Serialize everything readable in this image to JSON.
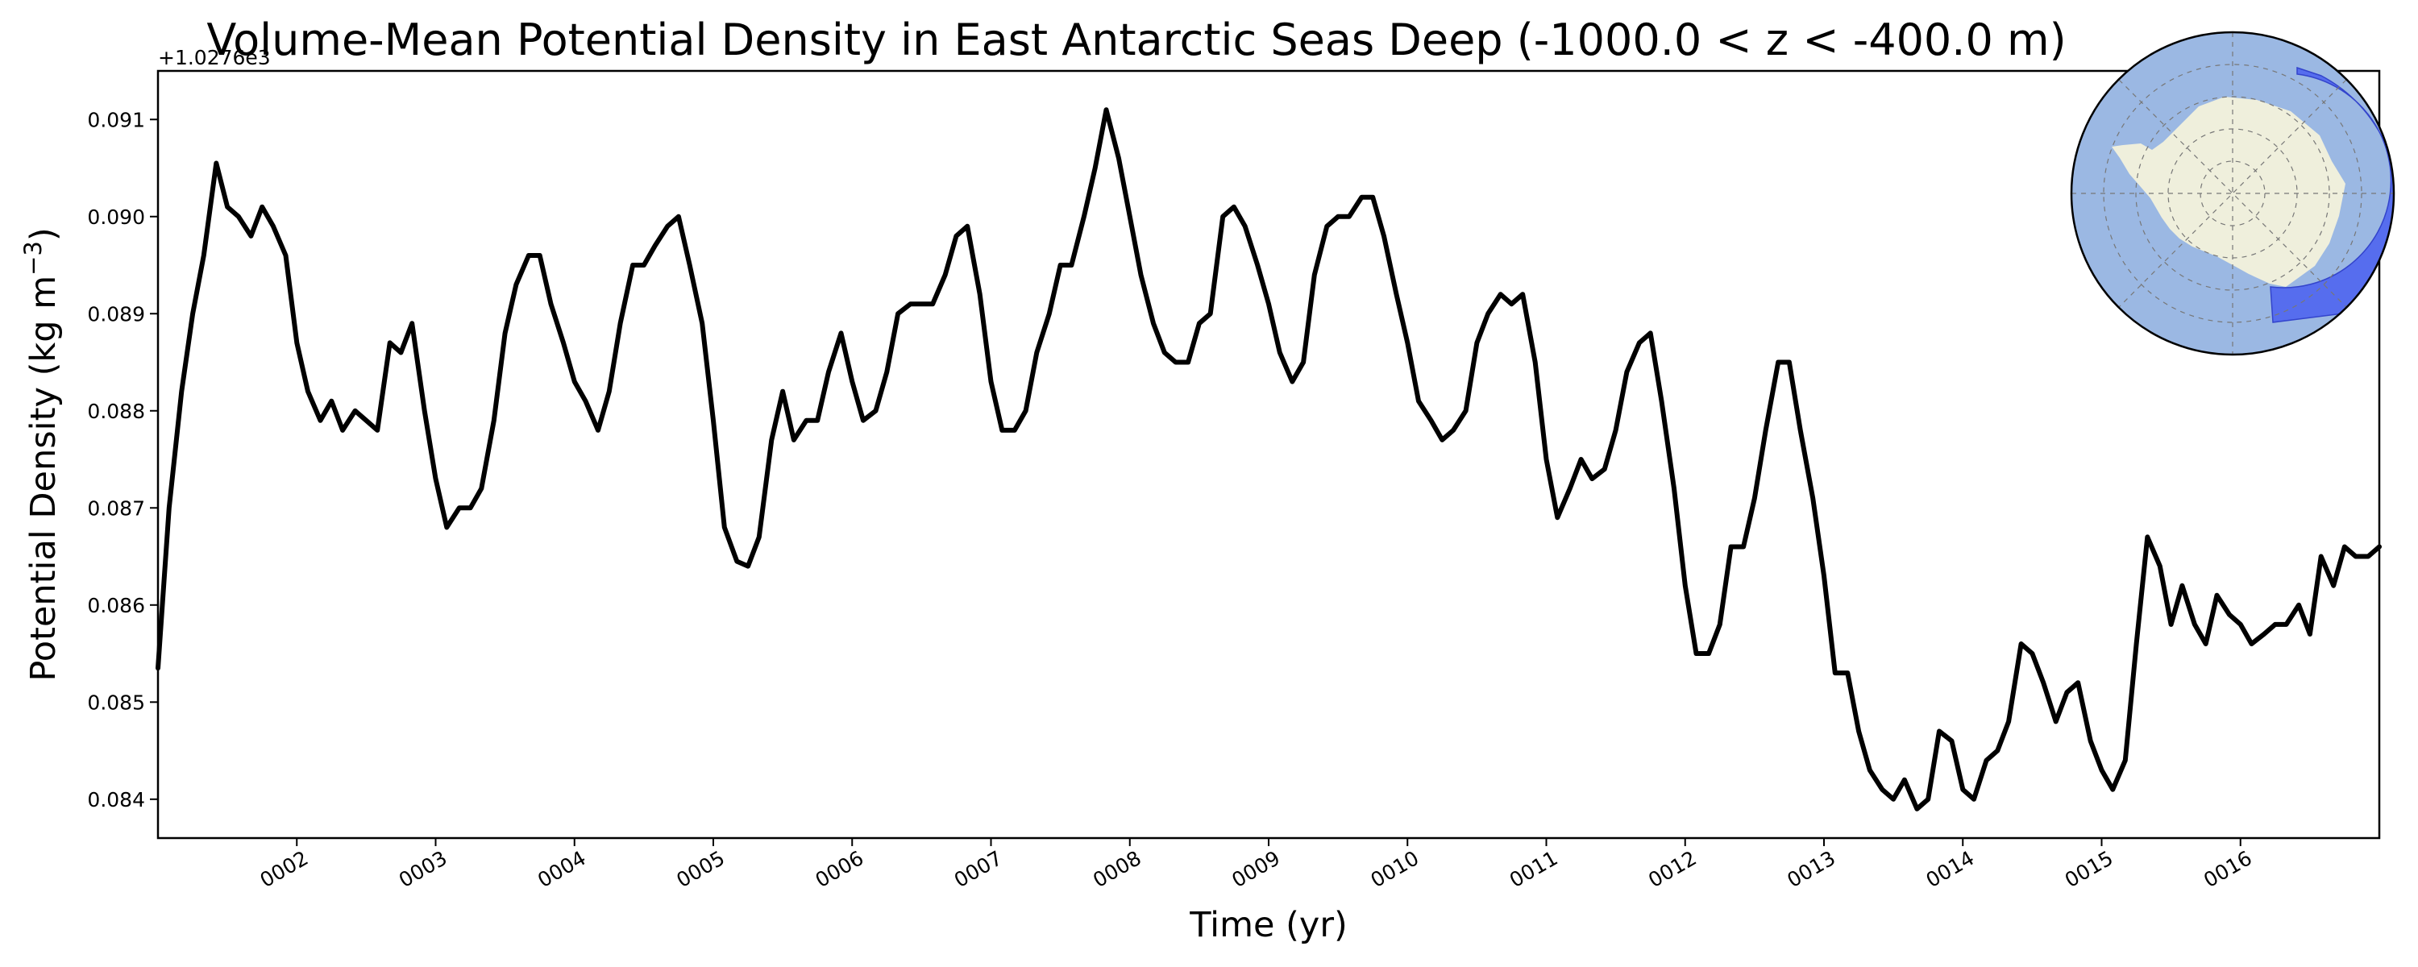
{
  "chart_data": {
    "type": "line",
    "title": "Volume-Mean Potential Density in East Antarctic Seas Deep (-1000.0 < z < -400.0 m)",
    "xlabel": "Time (yr)",
    "ylabel_main": "Potential Density (kg m",
    "ylabel_exp": "−3",
    "ylabel_close": ")",
    "y_offset_label": "+1.0276e3",
    "xlim": [
      1.0,
      17.0
    ],
    "ylim": [
      0.0836,
      0.0915
    ],
    "x_ticks": [
      {
        "value": 2,
        "label": "0002"
      },
      {
        "value": 3,
        "label": "0003"
      },
      {
        "value": 4,
        "label": "0004"
      },
      {
        "value": 5,
        "label": "0005"
      },
      {
        "value": 6,
        "label": "0006"
      },
      {
        "value": 7,
        "label": "0007"
      },
      {
        "value": 8,
        "label": "0008"
      },
      {
        "value": 9,
        "label": "0009"
      },
      {
        "value": 10,
        "label": "0010"
      },
      {
        "value": 11,
        "label": "0011"
      },
      {
        "value": 12,
        "label": "0012"
      },
      {
        "value": 13,
        "label": "0013"
      },
      {
        "value": 14,
        "label": "0014"
      },
      {
        "value": 15,
        "label": "0015"
      },
      {
        "value": 16,
        "label": "0016"
      }
    ],
    "y_ticks": [
      {
        "value": 0.084,
        "label": "0.084"
      },
      {
        "value": 0.085,
        "label": "0.085"
      },
      {
        "value": 0.086,
        "label": "0.086"
      },
      {
        "value": 0.087,
        "label": "0.087"
      },
      {
        "value": 0.088,
        "label": "0.088"
      },
      {
        "value": 0.089,
        "label": "0.089"
      },
      {
        "value": 0.09,
        "label": "0.090"
      },
      {
        "value": 0.091,
        "label": "0.091"
      }
    ],
    "grid": false,
    "line_color": "#000000",
    "inset_map": {
      "type": "south-polar-map",
      "ocean_color": "#9bb8e3",
      "land_color": "#efefdc",
      "region_color": "#4a5ff0"
    },
    "series": [
      {
        "x": [
          1.0,
          1.08,
          1.17,
          1.25,
          1.33,
          1.42,
          1.5,
          1.58,
          1.67,
          1.75,
          1.83,
          1.92,
          2.0,
          2.08,
          2.17,
          2.25,
          2.33,
          2.42,
          2.5,
          2.58,
          2.67,
          2.75,
          2.83,
          2.92,
          3.0,
          3.08,
          3.17,
          3.25,
          3.33,
          3.42,
          3.5,
          3.58,
          3.67,
          3.75,
          3.83,
          3.92,
          4.0,
          4.08,
          4.17,
          4.25,
          4.33,
          4.42,
          4.5,
          4.58,
          4.67,
          4.75,
          4.83,
          4.92,
          5.0,
          5.08,
          5.17,
          5.25,
          5.33,
          5.42,
          5.5,
          5.58,
          5.67,
          5.75,
          5.83,
          5.92,
          6.0,
          6.08,
          6.17,
          6.25,
          6.33,
          6.42,
          6.5,
          6.58,
          6.67,
          6.75,
          6.83,
          6.92,
          7.0,
          7.08,
          7.17,
          7.25,
          7.33,
          7.42,
          7.5,
          7.58,
          7.67,
          7.75,
          7.83,
          7.92,
          8.0,
          8.08,
          8.17,
          8.25,
          8.33,
          8.42,
          8.5,
          8.58,
          8.67,
          8.75,
          8.83,
          8.92,
          9.0,
          9.08,
          9.17,
          9.25,
          9.33,
          9.42,
          9.5,
          9.58,
          9.67,
          9.75,
          9.83,
          9.92,
          10.0,
          10.08,
          10.17,
          10.25,
          10.33,
          10.42,
          10.5,
          10.58,
          10.67,
          10.75,
          10.83,
          10.92,
          11.0,
          11.08,
          11.17,
          11.25,
          11.33,
          11.42,
          11.5,
          11.58,
          11.67,
          11.75,
          11.83,
          11.92,
          12.0,
          12.08,
          12.17,
          12.25,
          12.33,
          12.42,
          12.5,
          12.58,
          12.67,
          12.75,
          12.83,
          12.92,
          13.0,
          13.08,
          13.17,
          13.25,
          13.33,
          13.42,
          13.5,
          13.58,
          13.67,
          13.75,
          13.83,
          13.92,
          14.0,
          14.08,
          14.17,
          14.25,
          14.33,
          14.42,
          14.5,
          14.58,
          14.67,
          14.75,
          14.83,
          14.92,
          15.0,
          15.08,
          15.17,
          15.25,
          15.33,
          15.42,
          15.5,
          15.58,
          15.67,
          15.75,
          15.83,
          15.92,
          16.0,
          16.08,
          16.17,
          16.25,
          16.33,
          16.42,
          16.5,
          16.58,
          16.67,
          16.75,
          16.83,
          16.92,
          17.0
        ],
        "values": [
          0.08535,
          0.087,
          0.0882,
          0.089,
          0.0896,
          0.09055,
          0.0901,
          0.09,
          0.0898,
          0.0901,
          0.0899,
          0.0896,
          0.0887,
          0.0882,
          0.0879,
          0.0881,
          0.0878,
          0.088,
          0.0879,
          0.0878,
          0.0887,
          0.0886,
          0.0889,
          0.088,
          0.0873,
          0.0868,
          0.087,
          0.087,
          0.0872,
          0.0879,
          0.0888,
          0.0893,
          0.0896,
          0.0896,
          0.0891,
          0.0887,
          0.0883,
          0.0881,
          0.0878,
          0.0882,
          0.0889,
          0.0895,
          0.0895,
          0.0897,
          0.0899,
          0.09,
          0.0895,
          0.0889,
          0.0879,
          0.0868,
          0.08645,
          0.0864,
          0.0867,
          0.0877,
          0.0882,
          0.0877,
          0.0879,
          0.0879,
          0.0884,
          0.0888,
          0.0883,
          0.0879,
          0.088,
          0.0884,
          0.089,
          0.0891,
          0.0891,
          0.0891,
          0.0894,
          0.0898,
          0.0899,
          0.0892,
          0.0883,
          0.0878,
          0.0878,
          0.088,
          0.0886,
          0.089,
          0.0895,
          0.0895,
          0.09,
          0.0905,
          0.0911,
          0.0906,
          0.09,
          0.0894,
          0.0889,
          0.0886,
          0.0885,
          0.0885,
          0.0889,
          0.089,
          0.09,
          0.0901,
          0.0899,
          0.0895,
          0.0891,
          0.0886,
          0.0883,
          0.0885,
          0.0894,
          0.0899,
          0.09,
          0.09,
          0.0902,
          0.0902,
          0.0898,
          0.0892,
          0.0887,
          0.0881,
          0.0879,
          0.0877,
          0.0878,
          0.088,
          0.0887,
          0.089,
          0.0892,
          0.0891,
          0.0892,
          0.0885,
          0.0875,
          0.0869,
          0.0872,
          0.0875,
          0.0873,
          0.0874,
          0.0878,
          0.0884,
          0.0887,
          0.0888,
          0.0881,
          0.0872,
          0.0862,
          0.0855,
          0.0855,
          0.0858,
          0.0866,
          0.0866,
          0.0871,
          0.0878,
          0.0885,
          0.0885,
          0.0878,
          0.0871,
          0.0863,
          0.0853,
          0.0853,
          0.0847,
          0.0843,
          0.0841,
          0.084,
          0.0842,
          0.0839,
          0.084,
          0.0847,
          0.0846,
          0.0841,
          0.084,
          0.0844,
          0.0845,
          0.0848,
          0.0856,
          0.0855,
          0.0852,
          0.0848,
          0.0851,
          0.0852,
          0.0846,
          0.0843,
          0.0841,
          0.0844,
          0.0856,
          0.0867,
          0.0864,
          0.0858,
          0.0862,
          0.0858,
          0.0856,
          0.0861,
          0.0859,
          0.0858,
          0.0856,
          0.0857,
          0.0858,
          0.0858,
          0.086,
          0.0857,
          0.0865,
          0.0862,
          0.0866,
          0.0865,
          0.0865,
          0.0866
        ]
      }
    ]
  }
}
